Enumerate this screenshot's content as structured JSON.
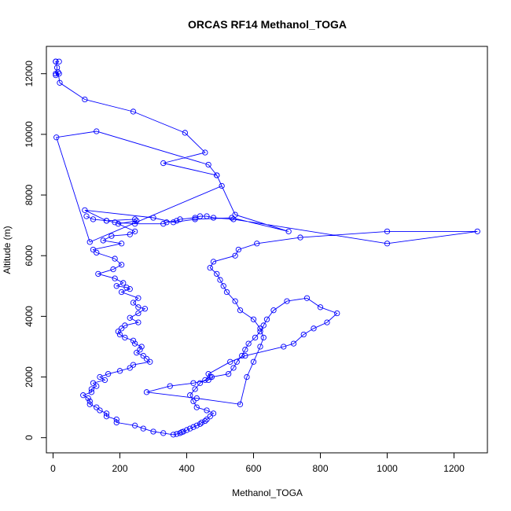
{
  "chart_data": {
    "type": "line",
    "title": "ORCAS RF14 Methanol_TOGA",
    "xlabel": "Methanol_TOGA",
    "ylabel": "Altitude (m)",
    "xlim": [
      -20,
      1300
    ],
    "ylim": [
      -500,
      12900
    ],
    "xticks": [
      0,
      200,
      400,
      600,
      800,
      1000,
      1200
    ],
    "yticks": [
      0,
      2000,
      4000,
      6000,
      8000,
      10000,
      12000
    ],
    "grid": false,
    "legend": "none",
    "marker": "open-circle",
    "color": "#0000ff",
    "series": [
      {
        "x": [
          8,
          18,
          8,
          12,
          8,
          18,
          8,
          15,
          20,
          95,
          240,
          395,
          455,
          330,
          490,
          505,
          110,
          10,
          130,
          465,
          490,
          545,
          705,
          535,
          425,
          360,
          300,
          95,
          160,
          245,
          250,
          195,
          245,
          230,
          175,
          150,
          205,
          120,
          130,
          185,
          205,
          180,
          135,
          185,
          210,
          190,
          220,
          230,
          205,
          255,
          240,
          255,
          275,
          255,
          230,
          255,
          215,
          205,
          195,
          200,
          215,
          240,
          245,
          265,
          260,
          250,
          270,
          280,
          290,
          240,
          230,
          200,
          165,
          140,
          155,
          120,
          130,
          115,
          115,
          90,
          105,
          110,
          110,
          130,
          140,
          160,
          160,
          190,
          190,
          245,
          270,
          300,
          330,
          360,
          370,
          380,
          385,
          390,
          400,
          410,
          420,
          430,
          440,
          445,
          455,
          460,
          470,
          480,
          460,
          430,
          420,
          410,
          425,
          440,
          455,
          470,
          465,
          530,
          575,
          690,
          720,
          750,
          780,
          820,
          850,
          800,
          760,
          700,
          660,
          640,
          630,
          620,
          605,
          585,
          575,
          565,
          550,
          540,
          525,
          475,
          465,
          420,
          350,
          280,
          430,
          560,
          580,
          600,
          620,
          630,
          620,
          600,
          560,
          545,
          520,
          510,
          500,
          490,
          470,
          480,
          545,
          555,
          610,
          740,
          1000,
          1270,
          1000,
          540,
          480,
          460,
          440,
          425,
          380,
          370,
          340,
          330,
          245,
          185,
          160,
          120,
          100
        ],
        "y": [
          12400,
          12400,
          12400,
          12200,
          12000,
          12000,
          11950,
          12050,
          11700,
          11150,
          10750,
          10050,
          9400,
          9050,
          8650,
          8300,
          6450,
          9900,
          10100,
          9000,
          8650,
          7350,
          6800,
          7250,
          7200,
          7100,
          7250,
          7500,
          7150,
          7200,
          7150,
          7050,
          6800,
          6700,
          6650,
          6500,
          6400,
          6200,
          6100,
          5900,
          5700,
          5550,
          5400,
          5250,
          5100,
          5000,
          4950,
          4900,
          4800,
          4600,
          4450,
          4300,
          4250,
          4100,
          3950,
          3800,
          3700,
          3600,
          3500,
          3400,
          3300,
          3200,
          3100,
          3000,
          2900,
          2800,
          2700,
          2600,
          2500,
          2400,
          2300,
          2200,
          2100,
          2000,
          1900,
          1800,
          1700,
          1600,
          1500,
          1400,
          1300,
          1200,
          1100,
          1000,
          900,
          800,
          700,
          600,
          500,
          400,
          300,
          200,
          150,
          100,
          120,
          150,
          180,
          200,
          250,
          300,
          350,
          400,
          450,
          500,
          550,
          600,
          700,
          800,
          900,
          1000,
          1200,
          1400,
          1600,
          1800,
          1900,
          2000,
          2100,
          2500,
          2700,
          3000,
          3100,
          3400,
          3600,
          3800,
          4100,
          4300,
          4600,
          4500,
          4200,
          3900,
          3700,
          3500,
          3300,
          3100,
          2900,
          2700,
          2500,
          2300,
          2100,
          2000,
          1900,
          1800,
          1700,
          1500,
          1300,
          1100,
          2000,
          2500,
          3000,
          3300,
          3600,
          3900,
          4200,
          4500,
          4800,
          5000,
          5200,
          5400,
          5600,
          5800,
          6000,
          6200,
          6400,
          6600,
          6800,
          6800,
          6400,
          7200,
          7250,
          7300,
          7300,
          7250,
          7200,
          7150,
          7100,
          7050,
          7050,
          7100,
          7150,
          7200,
          7300
        ]
      }
    ]
  }
}
